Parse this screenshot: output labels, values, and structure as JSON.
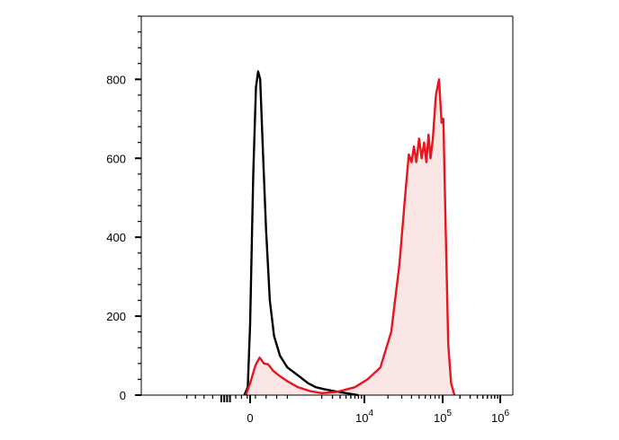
{
  "chart_data": {
    "type": "area",
    "title": "",
    "xlabel": "",
    "ylabel": "",
    "ylim": [
      0,
      960
    ],
    "y_ticks": [
      0,
      200,
      400,
      600,
      800
    ],
    "y_tick_labels": [
      "0",
      "200",
      "400",
      "600",
      "800"
    ],
    "x_scale": "biexponential",
    "x_ticks": [
      {
        "value": 0,
        "label": "0",
        "exp": ""
      },
      {
        "value": 10000,
        "label": "10",
        "exp": "4"
      },
      {
        "value": 100000,
        "label": "10",
        "exp": "5"
      },
      {
        "value": 1000000,
        "label": "10",
        "exp": "6"
      }
    ],
    "grid": false,
    "series": [
      {
        "key": "control",
        "color": "#000000",
        "filled": false,
        "points": [
          [
            -200,
            0
          ],
          [
            -80,
            20
          ],
          [
            0,
            180
          ],
          [
            60,
            560
          ],
          [
            110,
            780
          ],
          [
            150,
            820
          ],
          [
            190,
            800
          ],
          [
            240,
            620
          ],
          [
            300,
            420
          ],
          [
            370,
            240
          ],
          [
            450,
            150
          ],
          [
            560,
            100
          ],
          [
            700,
            70
          ],
          [
            900,
            50
          ],
          [
            1200,
            30
          ],
          [
            1600,
            20
          ],
          [
            2200,
            15
          ],
          [
            3200,
            10
          ],
          [
            5000,
            5
          ],
          [
            8000,
            0
          ]
        ]
      },
      {
        "key": "stained",
        "color": "#e8141e",
        "fill_color": "#fbe6e6",
        "filled": true,
        "points": [
          [
            -150,
            0
          ],
          [
            0,
            30
          ],
          [
            100,
            75
          ],
          [
            180,
            95
          ],
          [
            260,
            80
          ],
          [
            340,
            78
          ],
          [
            430,
            62
          ],
          [
            540,
            50
          ],
          [
            700,
            35
          ],
          [
            900,
            20
          ],
          [
            1300,
            10
          ],
          [
            2000,
            5
          ],
          [
            3500,
            8
          ],
          [
            7000,
            20
          ],
          [
            11000,
            40
          ],
          [
            16000,
            70
          ],
          [
            22000,
            160
          ],
          [
            28000,
            330
          ],
          [
            33000,
            500
          ],
          [
            37000,
            610
          ],
          [
            40000,
            590
          ],
          [
            43000,
            630
          ],
          [
            46000,
            590
          ],
          [
            50000,
            650
          ],
          [
            54000,
            600
          ],
          [
            58000,
            640
          ],
          [
            62000,
            590
          ],
          [
            66000,
            660
          ],
          [
            70000,
            600
          ],
          [
            75000,
            650
          ],
          [
            82000,
            760
          ],
          [
            90000,
            800
          ],
          [
            97000,
            690
          ],
          [
            103000,
            700
          ],
          [
            112000,
            450
          ],
          [
            125000,
            130
          ],
          [
            140000,
            30
          ],
          [
            160000,
            0
          ]
        ]
      }
    ]
  }
}
